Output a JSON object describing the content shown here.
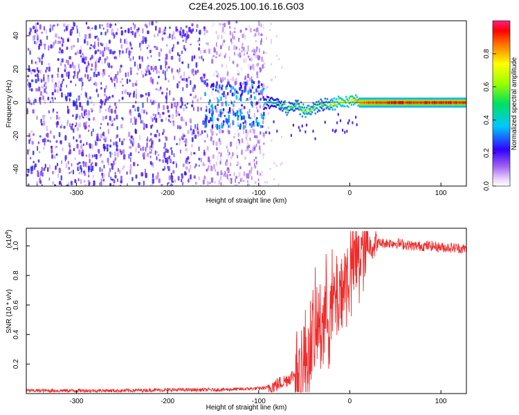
{
  "title": "C2E4.2025.100.16.16.G03",
  "chart_data": [
    {
      "type": "heatmap",
      "name": "spectrogram",
      "xlabel": "Height of straight line (km)",
      "ylabel": "Frequency (Hz)",
      "xlim": [
        -355,
        128
      ],
      "ylim": [
        -50,
        49
      ],
      "x_ticks": [
        -300,
        -200,
        -100,
        0,
        100
      ],
      "y_ticks": [
        -40,
        -20,
        0,
        20,
        40
      ],
      "colorbar": {
        "label": "Normalized spectral amplitude",
        "range": [
          0,
          1
        ],
        "ticks": [
          0.0,
          0.2,
          0.4,
          0.6,
          0.8
        ],
        "tick_labels": [
          "0.0",
          "0.2",
          "0.4",
          "0.6",
          "0.8"
        ]
      },
      "description_regions": [
        {
          "x_range": [
            -355,
            -95
          ],
          "freq_range": [
            -50,
            49
          ],
          "amplitude": "low (noise, 0.05-0.25)"
        },
        {
          "x_range": [
            -160,
            -95
          ],
          "freq_range": [
            -15,
            15
          ],
          "amplitude": "0.2-0.4"
        },
        {
          "x_range": [
            -95,
            10
          ],
          "freq_range": [
            -12,
            6
          ],
          "amplitude": "0.3-0.7 (wavy carrier)"
        },
        {
          "x_range": [
            10,
            128
          ],
          "freq_range": [
            -1,
            1
          ],
          "amplitude": "0.8-1.0 (stable carrier)"
        }
      ],
      "carrier_trace": {
        "x": [
          -90,
          -80,
          -70,
          -60,
          -50,
          -40,
          -30,
          -20,
          -10,
          0,
          10,
          20,
          40,
          60,
          80,
          100,
          128
        ],
        "freq": [
          0,
          0,
          -3,
          -1,
          -5,
          -2,
          -1,
          0,
          1,
          2,
          1,
          0,
          0,
          0,
          0,
          0,
          0
        ],
        "amplitude": [
          0.4,
          0.45,
          0.55,
          0.5,
          0.6,
          0.55,
          0.5,
          0.6,
          0.7,
          0.75,
          0.85,
          0.9,
          0.95,
          0.95,
          0.95,
          0.95,
          0.95
        ]
      }
    },
    {
      "type": "line",
      "name": "snr",
      "xlabel": "Height of straight line (km)",
      "ylabel": "SNR (10 * v/v)",
      "y_multiplier_label": "(x10",
      "y_multiplier_exp": "4",
      "xlim": [
        -355,
        128
      ],
      "ylim": [
        0.0,
        1.12
      ],
      "x_ticks": [
        -300,
        -200,
        -100,
        0,
        100
      ],
      "y_ticks": [
        0.2,
        0.4,
        0.6,
        0.8,
        1.0
      ],
      "color": "#ee2b2b",
      "series": [
        {
          "name": "SNR",
          "x": [
            -355,
            -300,
            -250,
            -200,
            -150,
            -120,
            -100,
            -90,
            -80,
            -70,
            -60,
            -50,
            -45,
            -40,
            -35,
            -30,
            -25,
            -20,
            -15,
            -10,
            -5,
            0,
            5,
            10,
            15,
            20,
            25,
            30,
            40,
            50,
            60,
            70,
            80,
            90,
            100,
            110,
            128
          ],
          "values": [
            0.02,
            0.02,
            0.02,
            0.025,
            0.025,
            0.03,
            0.035,
            0.04,
            0.06,
            0.09,
            0.13,
            0.2,
            0.3,
            0.38,
            0.45,
            0.5,
            0.55,
            0.58,
            0.65,
            0.7,
            0.76,
            0.82,
            0.88,
            0.93,
            0.97,
            0.99,
            1.01,
            1.02,
            1.02,
            1.02,
            1.01,
            1.0,
            1.0,
            1.0,
            0.99,
            0.99,
            0.98
          ]
        }
      ]
    }
  ]
}
